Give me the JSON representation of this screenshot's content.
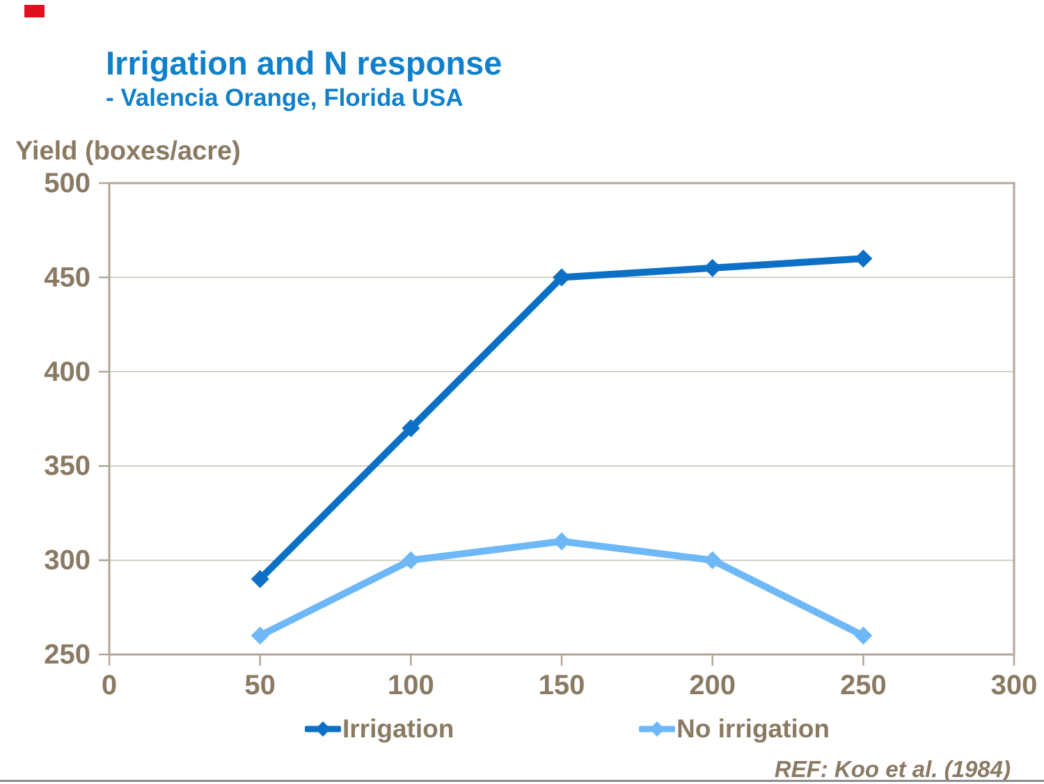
{
  "page": {
    "title": "Irrigation and N response",
    "subtitle": "- Valencia Orange, Florida USA",
    "title_color": "#1080CB",
    "corner_marker_color": "#E0111F",
    "text_brown": "#8A7A63",
    "footer_ref": "REF: Koo et al. (1984)",
    "footer_rule_color": "#8C8C8C"
  },
  "chart_data": {
    "type": "line",
    "title": "Irrigation and N response",
    "subtitle": "- Valencia Orange, Florida USA",
    "ylabel": "Yield (boxes/acre)",
    "xlabel": "",
    "x": [
      50,
      100,
      150,
      200,
      250
    ],
    "series": [
      {
        "name": "Irrigation",
        "color": "#0C70C6",
        "values": [
          290,
          370,
          450,
          455,
          460
        ]
      },
      {
        "name": "No irrigation",
        "color": "#6EB8F7",
        "values": [
          260,
          300,
          310,
          300,
          260
        ]
      }
    ],
    "xlim": [
      0,
      300
    ],
    "ylim": [
      250,
      500
    ],
    "x_ticks": [
      0,
      50,
      100,
      150,
      200,
      250,
      300
    ],
    "y_ticks": [
      250,
      300,
      350,
      400,
      450,
      500
    ],
    "grid": "horizontal-only",
    "marker": "diamond",
    "legend_position": "bottom",
    "axis_color": "#B2A695",
    "gridline_color": "#C8BFB2",
    "tick_label_color": "#8A7A63"
  }
}
